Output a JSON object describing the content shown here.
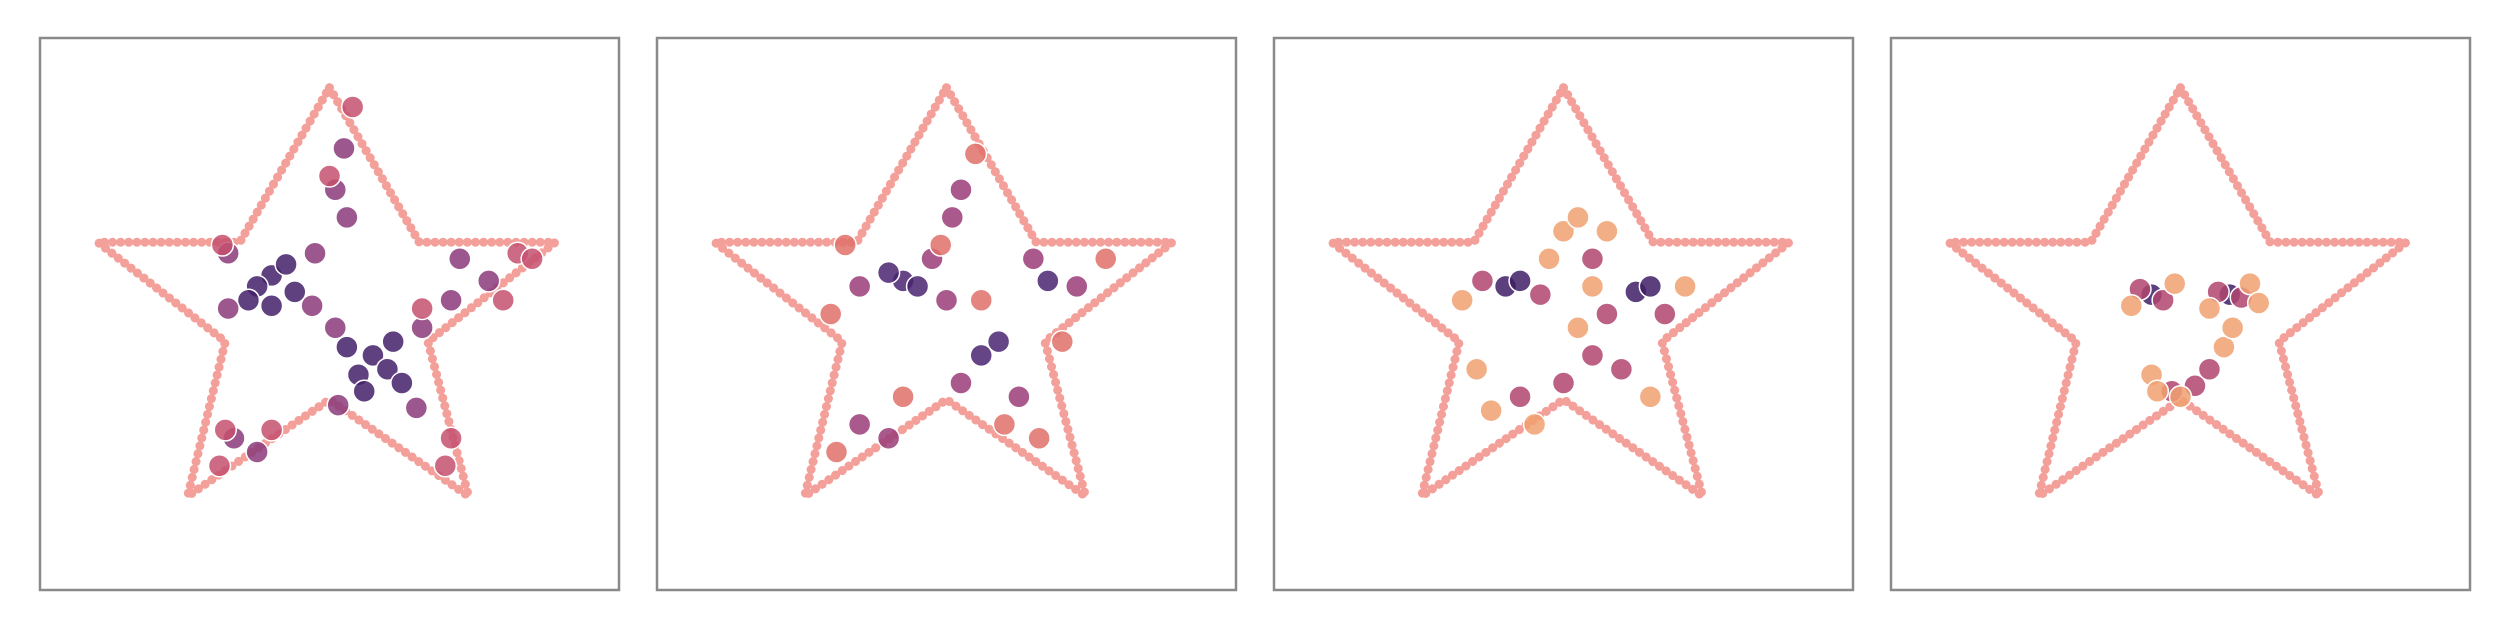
{
  "chart_data": [
    {
      "type": "scatter",
      "xlim": [
        -1,
        1
      ],
      "ylim": [
        -1,
        1
      ],
      "outline": {
        "color": "#f4a09a",
        "x": [
          0,
          0.31,
          0.78,
          0.34,
          0.48,
          0,
          -0.49,
          -0.36,
          -0.8,
          -0.31
        ],
        "y": [
          0.82,
          0.26,
          0.26,
          -0.1,
          -0.66,
          -0.31,
          -0.66,
          -0.1,
          0.26,
          0.26
        ]
      },
      "series": [
        {
          "color": "#43206a",
          "x": [
            -0.2,
            -0.25,
            -0.15,
            -0.28,
            -0.12,
            -0.2,
            0.15,
            0.2,
            0.1,
            0.22,
            0.12,
            0.25,
            0.06
          ],
          "y": [
            0.14,
            0.1,
            0.18,
            0.05,
            0.08,
            0.03,
            -0.15,
            -0.2,
            -0.22,
            -0.1,
            -0.28,
            -0.25,
            -0.12
          ]
        },
        {
          "color": "#8a3a7a",
          "x": [
            -0.35,
            -0.05,
            -0.35,
            -0.06,
            0.02,
            0.32,
            0.03,
            0.3,
            0.45,
            0.55,
            0.42,
            0.05,
            0.02,
            0.06,
            -0.33,
            -0.25
          ],
          "y": [
            0.22,
            0.22,
            0.02,
            0.03,
            -0.05,
            -0.05,
            -0.33,
            -0.34,
            0.2,
            0.12,
            0.05,
            0.6,
            0.45,
            0.35,
            -0.45,
            -0.5
          ]
        },
        {
          "color": "#c4506e",
          "x": [
            0.65,
            0.7,
            0.6,
            0.08,
            0.0,
            -0.38,
            -0.2,
            -0.36,
            0.4,
            0.42,
            0.32,
            -0.37
          ],
          "y": [
            0.22,
            0.2,
            0.05,
            0.75,
            0.5,
            -0.55,
            -0.42,
            -0.42,
            -0.55,
            -0.45,
            0.02,
            0.25
          ]
        }
      ]
    },
    {
      "type": "scatter",
      "xlim": [
        -1,
        1
      ],
      "ylim": [
        -1,
        1
      ],
      "outline": {
        "color": "#f4a09a",
        "x": [
          0,
          0.31,
          0.78,
          0.34,
          0.48,
          0,
          -0.49,
          -0.36,
          -0.8,
          -0.31
        ],
        "y": [
          0.82,
          0.26,
          0.26,
          -0.1,
          -0.66,
          -0.31,
          -0.66,
          -0.1,
          0.26,
          0.26
        ]
      },
      "series": [
        {
          "color": "#4a2470",
          "x": [
            -0.15,
            -0.2,
            -0.1,
            0.12,
            0.18,
            0.35
          ],
          "y": [
            0.12,
            0.15,
            0.1,
            -0.15,
            -0.1,
            0.12
          ]
        },
        {
          "color": "#9a3c78",
          "x": [
            -0.3,
            -0.05,
            0.0,
            0.05,
            0.25,
            0.3,
            0.45,
            0.05,
            0.02,
            -0.3,
            -0.2
          ],
          "y": [
            0.1,
            0.2,
            0.05,
            -0.25,
            -0.3,
            0.2,
            0.1,
            0.45,
            0.35,
            -0.4,
            -0.45
          ]
        },
        {
          "color": "#e0706a",
          "x": [
            -0.4,
            0.1,
            -0.02,
            -0.38,
            -0.15,
            0.32,
            0.2,
            0.55,
            0.12,
            -0.35,
            0.4
          ],
          "y": [
            0.0,
            0.58,
            0.25,
            -0.5,
            -0.3,
            -0.45,
            -0.4,
            0.2,
            0.05,
            0.25,
            -0.1
          ]
        }
      ]
    },
    {
      "type": "scatter",
      "xlim": [
        -1,
        1
      ],
      "ylim": [
        -1,
        1
      ],
      "outline": {
        "color": "#f4a09a",
        "x": [
          0,
          0.31,
          0.78,
          0.34,
          0.48,
          0,
          -0.49,
          -0.36,
          -0.8,
          -0.31
        ],
        "y": [
          0.82,
          0.26,
          0.26,
          -0.1,
          -0.66,
          -0.31,
          -0.66,
          -0.1,
          0.26,
          0.26
        ]
      },
      "series": [
        {
          "color": "#3e1f66",
          "x": [
            -0.2,
            -0.15,
            0.25,
            0.3
          ],
          "y": [
            0.1,
            0.12,
            0.08,
            0.1
          ]
        },
        {
          "color": "#b0456f",
          "x": [
            -0.28,
            -0.08,
            0.1,
            0.15,
            0.1,
            0.2,
            0.35,
            0.0,
            -0.15
          ],
          "y": [
            0.12,
            0.07,
            0.2,
            0.0,
            -0.15,
            -0.2,
            0.0,
            -0.25,
            -0.3
          ]
        },
        {
          "color": "#f0a070",
          "x": [
            -0.35,
            0.0,
            0.05,
            -0.05,
            0.1,
            -0.3,
            -0.25,
            0.05,
            0.42,
            -0.1,
            0.3,
            0.15
          ],
          "y": [
            0.05,
            0.3,
            0.35,
            0.2,
            0.1,
            -0.2,
            -0.35,
            -0.05,
            0.1,
            -0.4,
            -0.3,
            0.3
          ]
        }
      ]
    },
    {
      "type": "scatter",
      "xlim": [
        -1,
        1
      ],
      "ylim": [
        -1,
        1
      ],
      "outline": {
        "color": "#f4a09a",
        "x": [
          0,
          0.31,
          0.78,
          0.34,
          0.48,
          0,
          -0.49,
          -0.36,
          -0.8,
          -0.31
        ],
        "y": [
          0.82,
          0.26,
          0.26,
          -0.1,
          -0.66,
          -0.31,
          -0.66,
          -0.1,
          0.26,
          0.26
        ]
      },
      "series": [
        {
          "color": "#3e1f66",
          "x": [
            -0.1,
            0.17
          ],
          "y": [
            0.07,
            0.07
          ]
        },
        {
          "color": "#b0456f",
          "x": [
            -0.14,
            -0.06,
            0.13,
            0.21,
            -0.03,
            0.05,
            0.1
          ],
          "y": [
            0.09,
            0.05,
            0.08,
            0.06,
            -0.28,
            -0.26,
            -0.2
          ]
        },
        {
          "color": "#f0a070",
          "x": [
            -0.17,
            -0.02,
            0.1,
            0.24,
            -0.1,
            0.15,
            0.18,
            -0.08,
            0.0,
            0.27
          ],
          "y": [
            0.03,
            0.11,
            0.02,
            0.11,
            -0.22,
            -0.12,
            -0.05,
            -0.28,
            -0.3,
            0.04
          ]
        }
      ]
    }
  ]
}
